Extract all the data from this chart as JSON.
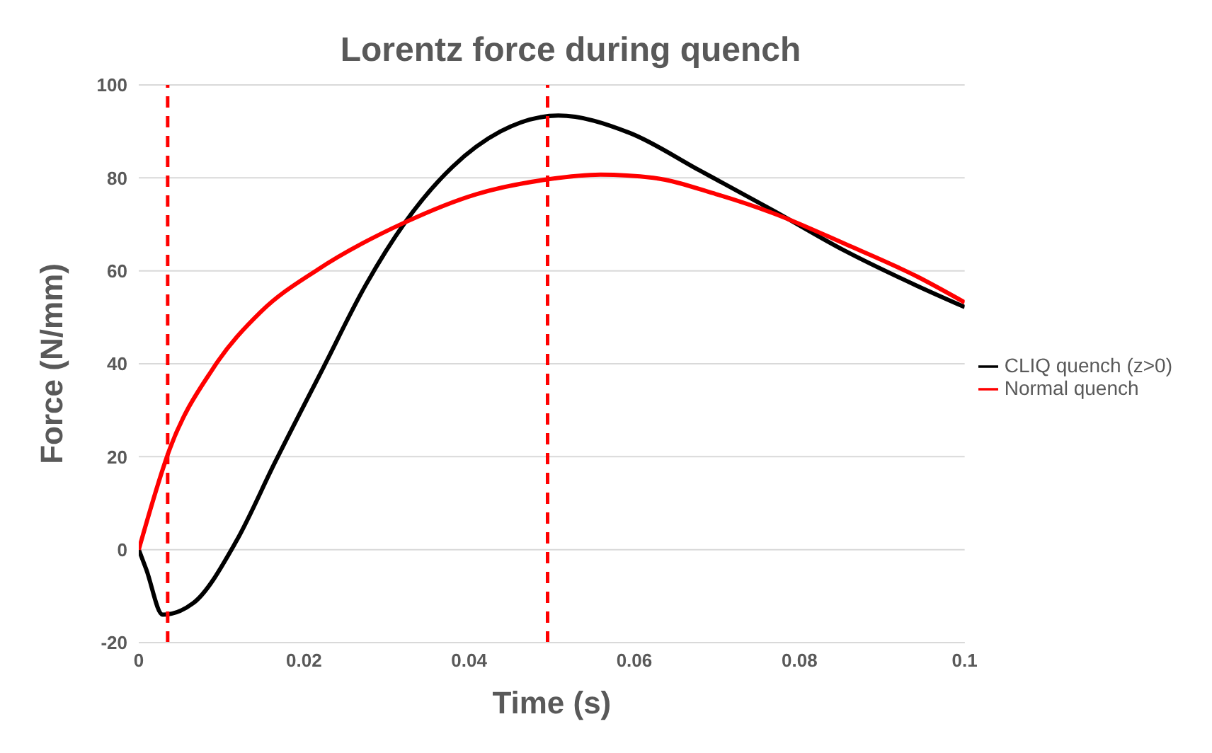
{
  "chart_data": {
    "type": "line",
    "title": "Lorentz force during quench",
    "xlabel": "Time (s)",
    "ylabel": "Force (N/mm)",
    "xlim": [
      0,
      0.1
    ],
    "xticks": [
      0,
      0.02,
      0.04,
      0.06,
      0.08,
      0.1
    ],
    "ylim": [
      -20,
      100
    ],
    "yticks": [
      -20,
      0,
      20,
      40,
      60,
      80,
      100
    ],
    "grid": "y",
    "legend": "right",
    "marker": "none",
    "line_style": "solid",
    "series": [
      {
        "name": "CLIQ quench (z>0)",
        "color": "#000000",
        "x": [
          0,
          0.0009,
          0.0029,
          0.0066,
          0.0118,
          0.0165,
          0.0223,
          0.0275,
          0.0322,
          0.038,
          0.0438,
          0.0508,
          0.0594,
          0.068,
          0.0768,
          0.0855,
          0.0942,
          0.1
        ],
        "values": [
          0,
          -4.2,
          -14,
          -11.5,
          1.8,
          18.8,
          39,
          57,
          70.3,
          82.4,
          90,
          93.4,
          89.7,
          81.5,
          73,
          64.3,
          56.8,
          52.2
        ]
      },
      {
        "name": "Normal quench",
        "color": "#ff0000",
        "x": [
          0,
          0.0038,
          0.009,
          0.0148,
          0.0217,
          0.0322,
          0.0409,
          0.0496,
          0.0559,
          0.0623,
          0.0699,
          0.0768,
          0.0855,
          0.0942,
          0.1
        ],
        "values": [
          0,
          21.9,
          39,
          51.2,
          60.3,
          70.4,
          76.5,
          79.7,
          80.7,
          80,
          76.5,
          72.4,
          65.8,
          58.8,
          53.2
        ]
      }
    ],
    "ref_lines": [
      {
        "axis": "x",
        "value": 0.0035,
        "color": "#ff0000",
        "line_style": "dashed"
      },
      {
        "axis": "x",
        "value": 0.0495,
        "color": "#ff0000",
        "line_style": "dashed"
      }
    ]
  }
}
